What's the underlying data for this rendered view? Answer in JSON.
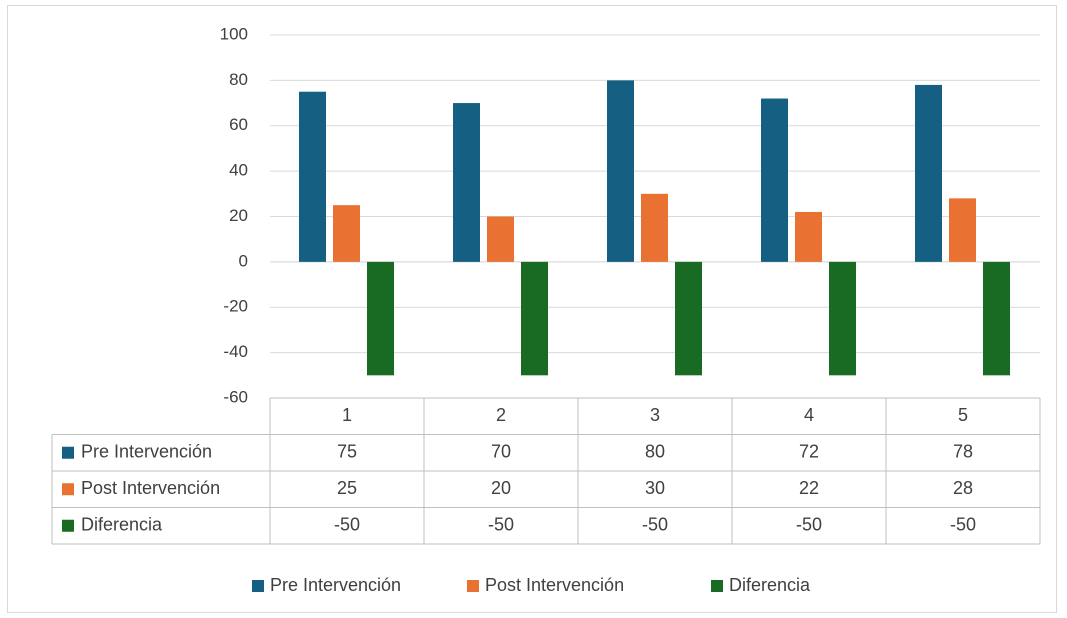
{
  "chart_data": {
    "type": "bar",
    "title": "",
    "xlabel": "",
    "ylabel": "",
    "categories": [
      "1",
      "2",
      "3",
      "4",
      "5"
    ],
    "ylim": [
      -60,
      100
    ],
    "yticks": [
      100,
      80,
      60,
      40,
      20,
      0,
      -20,
      -40,
      -60
    ],
    "grid": true,
    "legend_position": "bottom",
    "data_table": true,
    "series": [
      {
        "name": "Pre Intervención",
        "color": "#156082",
        "values": [
          75,
          70,
          80,
          72,
          78
        ]
      },
      {
        "name": "Post Intervención",
        "color": "#E97132",
        "values": [
          25,
          20,
          30,
          22,
          28
        ]
      },
      {
        "name": "Diferencia",
        "color": "#196B24",
        "values": [
          -50,
          -50,
          -50,
          -50,
          -50
        ]
      }
    ]
  }
}
